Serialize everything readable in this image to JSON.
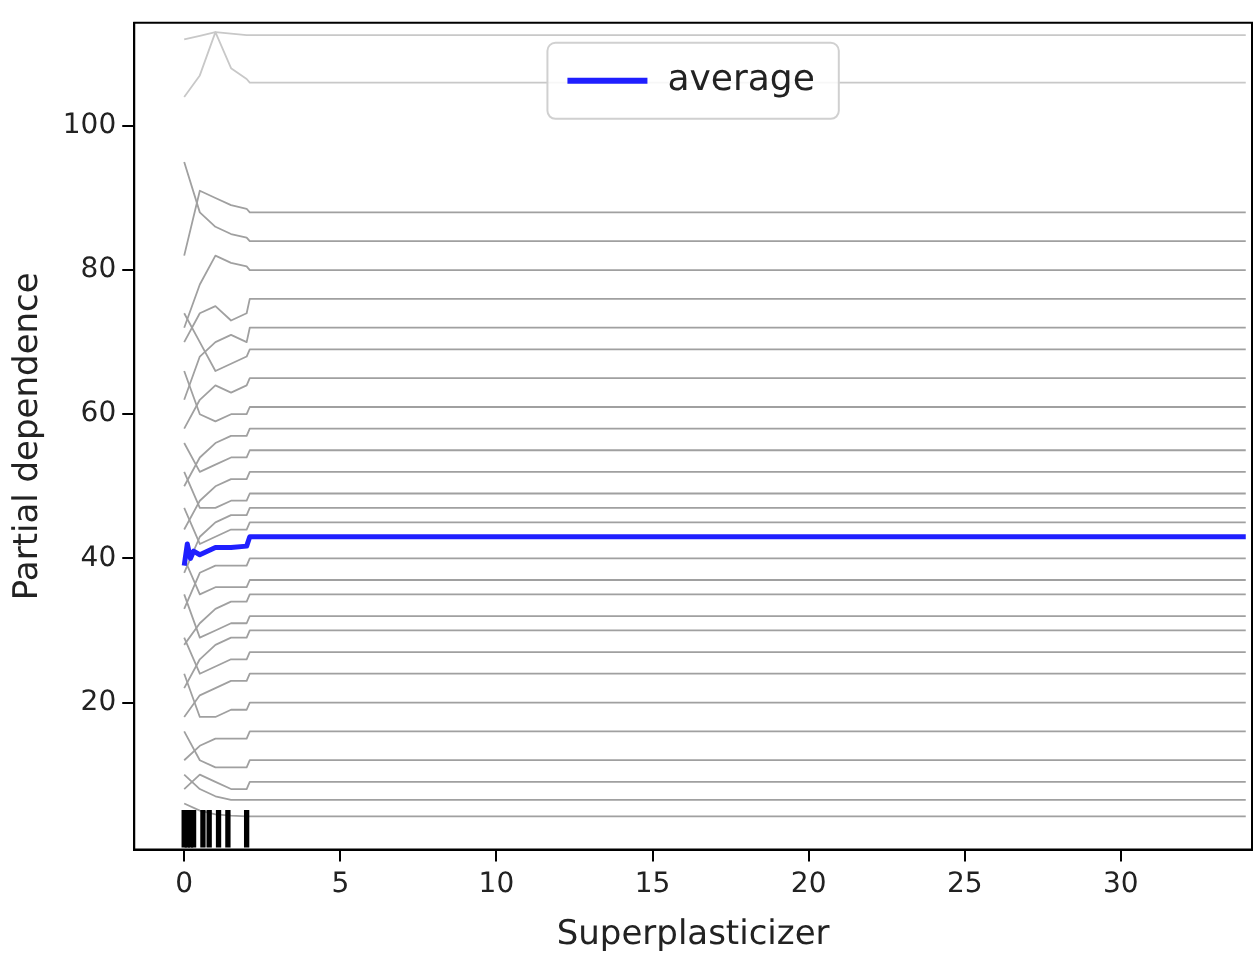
{
  "chart_data": {
    "type": "line",
    "xlabel": "Superplasticizer",
    "ylabel": "Partial dependence",
    "xlim": [
      -1.6,
      34.2
    ],
    "ylim": [
      -0.4,
      114.3
    ],
    "xticks": [
      0,
      5,
      10,
      15,
      20,
      25,
      30
    ],
    "yticks": [
      20,
      40,
      60,
      80,
      100
    ],
    "grid": false,
    "legend": "top",
    "marker": "none",
    "line_style": "solid",
    "series": [
      {
        "color": "#c8c8c8",
        "x": [
          0,
          0.5,
          1,
          1.5,
          2,
          2.1,
          34
        ],
        "values": [
          112,
          112.5,
          113,
          112.8,
          112.6,
          112.6,
          112.6
        ]
      },
      {
        "color": "#c8c8c8",
        "x": [
          0,
          0.5,
          1,
          1.5,
          2,
          2.1,
          34
        ],
        "values": [
          104,
          107,
          113,
          108,
          106.5,
          106,
          106
        ]
      },
      {
        "color": "#a0a0a0",
        "x": [
          0,
          0.5,
          1,
          1.5,
          2,
          2.1,
          34
        ],
        "values": [
          82,
          91,
          90,
          89,
          88.5,
          88,
          88
        ]
      },
      {
        "color": "#a0a0a0",
        "x": [
          0,
          0.5,
          1,
          1.5,
          2,
          2.1,
          34
        ],
        "values": [
          95,
          88,
          86,
          85,
          84.5,
          84,
          84
        ]
      },
      {
        "color": "#a0a0a0",
        "x": [
          0,
          0.5,
          1,
          1.5,
          2,
          2.1,
          34
        ],
        "values": [
          72,
          78,
          82,
          81,
          80.5,
          80,
          80
        ]
      },
      {
        "color": "#a0a0a0",
        "x": [
          0,
          0.5,
          1,
          1.5,
          2,
          2.1,
          34
        ],
        "values": [
          70,
          74,
          75,
          73,
          74,
          76,
          76
        ]
      },
      {
        "color": "#a0a0a0",
        "x": [
          0,
          0.5,
          1,
          1.5,
          2,
          2.1,
          34
        ],
        "values": [
          62,
          68,
          70,
          71,
          70,
          72,
          72
        ]
      },
      {
        "color": "#a0a0a0",
        "x": [
          0,
          0.5,
          1,
          1.5,
          2,
          2.1,
          34
        ],
        "values": [
          74,
          70,
          66,
          67,
          68,
          69,
          69
        ]
      },
      {
        "color": "#a0a0a0",
        "x": [
          0,
          0.5,
          1,
          1.5,
          2,
          2.1,
          34
        ],
        "values": [
          58,
          62,
          64,
          63,
          64,
          65,
          65
        ]
      },
      {
        "color": "#a0a0a0",
        "x": [
          0,
          0.5,
          1,
          1.5,
          2,
          2.1,
          34
        ],
        "values": [
          66,
          60,
          59,
          60,
          60,
          61,
          61
        ]
      },
      {
        "color": "#a0a0a0",
        "x": [
          0,
          0.5,
          1,
          1.5,
          2,
          2.1,
          34
        ],
        "values": [
          50,
          54,
          56,
          57,
          57,
          58,
          58
        ]
      },
      {
        "color": "#a0a0a0",
        "x": [
          0,
          0.5,
          1,
          1.5,
          2,
          2.1,
          34
        ],
        "values": [
          56,
          52,
          53,
          54,
          54,
          55,
          55
        ]
      },
      {
        "color": "#a0a0a0",
        "x": [
          0,
          0.5,
          1,
          1.5,
          2,
          2.1,
          34
        ],
        "values": [
          44,
          48,
          50,
          51,
          51,
          52,
          52
        ]
      },
      {
        "color": "#a0a0a0",
        "x": [
          0,
          0.5,
          1,
          1.5,
          2,
          2.1,
          34
        ],
        "values": [
          52,
          47,
          47,
          48,
          48,
          49,
          49
        ]
      },
      {
        "color": "#a0a0a0",
        "x": [
          0,
          0.5,
          1,
          1.5,
          2,
          2.1,
          34
        ],
        "values": [
          38,
          43,
          45,
          46,
          46,
          47,
          47
        ]
      },
      {
        "color": "#a0a0a0",
        "x": [
          0,
          0.5,
          1,
          1.5,
          2,
          2.1,
          34
        ],
        "values": [
          47,
          42,
          43,
          44,
          44,
          45,
          45
        ]
      },
      {
        "color": "#a0a0a0",
        "x": [
          0,
          0.5,
          1,
          1.5,
          2,
          2.1,
          34
        ],
        "values": [
          33,
          38,
          39,
          39,
          39,
          40,
          40
        ]
      },
      {
        "color": "#a0a0a0",
        "x": [
          0,
          0.5,
          1,
          1.5,
          2,
          2.1,
          34
        ],
        "values": [
          40,
          35,
          36,
          36,
          36,
          37,
          37
        ]
      },
      {
        "color": "#a0a0a0",
        "x": [
          0,
          0.5,
          1,
          1.5,
          2,
          2.1,
          34
        ],
        "values": [
          28,
          31,
          33,
          34,
          34,
          35,
          35
        ]
      },
      {
        "color": "#a0a0a0",
        "x": [
          0,
          0.5,
          1,
          1.5,
          2,
          2.1,
          34
        ],
        "values": [
          35,
          29,
          30,
          31,
          31,
          32,
          32
        ]
      },
      {
        "color": "#a0a0a0",
        "x": [
          0,
          0.5,
          1,
          1.5,
          2,
          2.1,
          34
        ],
        "values": [
          22,
          26,
          28,
          29,
          29,
          30,
          30
        ]
      },
      {
        "color": "#a0a0a0",
        "x": [
          0,
          0.5,
          1,
          1.5,
          2,
          2.1,
          34
        ],
        "values": [
          29,
          24,
          25,
          26,
          26,
          27,
          27
        ]
      },
      {
        "color": "#a0a0a0",
        "x": [
          0,
          0.5,
          1,
          1.5,
          2,
          2.1,
          34
        ],
        "values": [
          18,
          21,
          22,
          23,
          23,
          24,
          24
        ]
      },
      {
        "color": "#a0a0a0",
        "x": [
          0,
          0.5,
          1,
          1.5,
          2,
          2.1,
          34
        ],
        "values": [
          24,
          18,
          18,
          19,
          19,
          20,
          20
        ]
      },
      {
        "color": "#a0a0a0",
        "x": [
          0,
          0.5,
          1,
          1.5,
          2,
          2.1,
          34
        ],
        "values": [
          12,
          14,
          15,
          15,
          15,
          16,
          16
        ]
      },
      {
        "color": "#a0a0a0",
        "x": [
          0,
          0.5,
          1,
          1.5,
          2,
          2.1,
          34
        ],
        "values": [
          16,
          12,
          11,
          11,
          11,
          12,
          12
        ]
      },
      {
        "color": "#a0a0a0",
        "x": [
          0,
          0.5,
          1,
          1.5,
          2,
          2.1,
          34
        ],
        "values": [
          8,
          10,
          9,
          8,
          8,
          9,
          9
        ]
      },
      {
        "color": "#a0a0a0",
        "x": [
          0,
          0.5,
          1,
          1.5,
          2,
          2.1,
          34
        ],
        "values": [
          10,
          8,
          7,
          6.5,
          6.5,
          6.5,
          6.5
        ]
      },
      {
        "color": "#a0a0a0",
        "x": [
          0,
          0.5,
          1,
          1.5,
          2,
          2.1,
          34
        ],
        "values": [
          6,
          5,
          4.5,
          4.3,
          4.2,
          4.2,
          4.2
        ]
      },
      {
        "type": "bar",
        "color": "#000000",
        "x": [
          0,
          0.1,
          0.2,
          0.3,
          0.6,
          0.8,
          1.1,
          1.4,
          2.0
        ],
        "values": [
          5,
          5,
          5,
          5,
          5,
          5,
          5,
          5,
          5
        ]
      },
      {
        "name": "average",
        "color": "#1f1fff",
        "x": [
          0,
          0.1,
          0.2,
          0.3,
          0.5,
          1,
          1.5,
          2,
          2.1,
          34
        ],
        "values": [
          39,
          42,
          40,
          41,
          40.5,
          41.5,
          41.5,
          41.7,
          43,
          43
        ]
      }
    ]
  }
}
